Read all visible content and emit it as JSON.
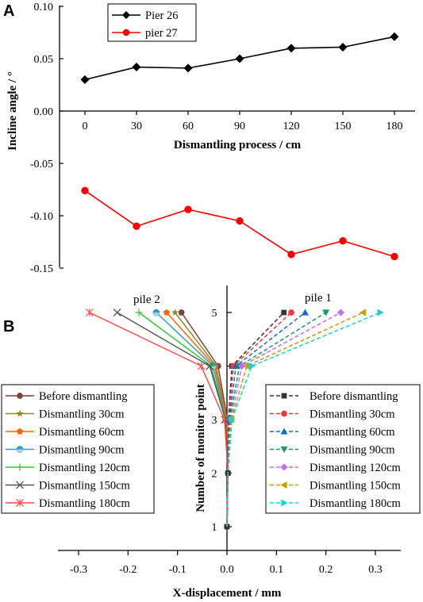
{
  "chart_data": [
    {
      "panel": "A",
      "type": "line",
      "xlabel": "Dismantling process / cm",
      "ylabel": "Incline angle / °",
      "categories": [
        "0",
        "30",
        "60",
        "90",
        "120",
        "150",
        "180"
      ],
      "x": [
        0,
        30,
        60,
        90,
        120,
        150,
        180
      ],
      "xlim": [
        -15,
        195
      ],
      "ylim": [
        -0.15,
        0.1
      ],
      "yticks": [
        "0.10",
        "0.05",
        "0.00",
        "-0.05",
        "-0.10",
        "-0.15"
      ],
      "ytick_values": [
        0.1,
        0.05,
        0.0,
        -0.05,
        -0.1,
        -0.15
      ],
      "legend_position": "top-left",
      "series": [
        {
          "name": "Pier 26",
          "color": "#000000",
          "marker": "diamond",
          "values": [
            0.03,
            0.042,
            0.041,
            0.05,
            0.06,
            0.061,
            0.071
          ]
        },
        {
          "name": "pier 27",
          "color": "#ff0000",
          "marker": "circle",
          "values": [
            -0.076,
            -0.11,
            -0.094,
            -0.105,
            -0.137,
            -0.124,
            -0.139
          ]
        }
      ]
    },
    {
      "panel": "B",
      "type": "line",
      "xlabel": "X-displacement / mm",
      "ylabel": "Number of monitor point",
      "xlim": [
        -0.35,
        0.35
      ],
      "ylim": [
        0.8,
        5.45
      ],
      "xticks": [
        "-0.3",
        "-0.2",
        "-0.1",
        "0.0",
        "0.1",
        "0.2",
        "0.3"
      ],
      "xtick_values": [
        -0.3,
        -0.2,
        -0.1,
        0.0,
        0.1,
        0.2,
        0.3
      ],
      "yticks": [
        "1",
        "2",
        "3",
        "4",
        "5"
      ],
      "ytick_values": [
        1,
        2,
        3,
        4,
        5
      ],
      "y": [
        1,
        2,
        3,
        4,
        5
      ],
      "annotations": [
        "pile 2",
        "pile 1"
      ],
      "pile2": {
        "legend_position": "left",
        "series": [
          {
            "name": "Before dismantling",
            "color": "#7f3f3f",
            "marker": "circle",
            "x": [
              0.0,
              0.002,
              0.001,
              -0.018,
              -0.092
            ]
          },
          {
            "name": "Dismantling 30cm",
            "color": "#8c8c1f",
            "marker": "star",
            "x": [
              0.0,
              0.002,
              0.0,
              -0.022,
              -0.105
            ]
          },
          {
            "name": "Dismantling 60cm",
            "color": "#ff6600",
            "marker": "pentagon",
            "x": [
              0.0,
              0.002,
              0.0,
              -0.025,
              -0.122
            ]
          },
          {
            "name": "Dismantling 90cm",
            "color": "#3399cc",
            "marker": "halfcircle",
            "x": [
              0.0,
              0.002,
              -0.002,
              -0.028,
              -0.143
            ]
          },
          {
            "name": "Dismantling 120cm",
            "color": "#33cc33",
            "marker": "plus",
            "x": [
              0.0,
              0.002,
              -0.003,
              -0.032,
              -0.178
            ]
          },
          {
            "name": "Dismantling 150cm",
            "color": "#555555",
            "marker": "cross",
            "x": [
              0.0,
              0.002,
              -0.003,
              -0.035,
              -0.222
            ]
          },
          {
            "name": "Dismantling 180cm",
            "color": "#ff4d4d",
            "marker": "asterisk",
            "x": [
              0.0,
              0.002,
              -0.005,
              -0.052,
              -0.278
            ]
          }
        ]
      },
      "pile1": {
        "legend_position": "right",
        "series": [
          {
            "name": "Before dismantling",
            "color": "#333333",
            "marker": "square",
            "x": [
              0.0,
              0.002,
              0.003,
              0.01,
              0.115
            ]
          },
          {
            "name": "Dismantling 30cm",
            "color": "#ff3333",
            "marker": "circle",
            "x": [
              0.0,
              0.002,
              0.004,
              0.013,
              0.13
            ]
          },
          {
            "name": "Dismantling 60cm",
            "color": "#1a66cc",
            "marker": "triangle-up",
            "x": [
              0.0,
              0.002,
              0.005,
              0.018,
              0.158
            ]
          },
          {
            "name": "Dismantling 90cm",
            "color": "#1a9966",
            "marker": "triangle-down",
            "x": [
              0.0,
              0.002,
              0.006,
              0.025,
              0.2
            ]
          },
          {
            "name": "Dismantling 120cm",
            "color": "#cc66ff",
            "marker": "diamond",
            "x": [
              0.0,
              0.002,
              0.008,
              0.03,
              0.23
            ]
          },
          {
            "name": "Dismantling 150cm",
            "color": "#cc9900",
            "marker": "triangle-left",
            "x": [
              0.0,
              0.002,
              0.009,
              0.04,
              0.275
            ]
          },
          {
            "name": "Dismantling 180cm",
            "color": "#1ad1d1",
            "marker": "triangle-right",
            "x": [
              0.0,
              0.002,
              0.01,
              0.05,
              0.31
            ]
          }
        ]
      }
    }
  ]
}
